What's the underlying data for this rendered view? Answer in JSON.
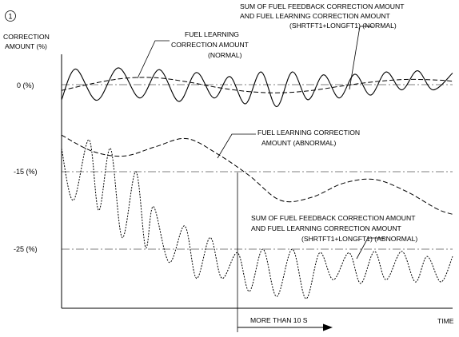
{
  "figure": {
    "marker": "1"
  },
  "chart_data": {
    "type": "line",
    "xlabel": "TIME",
    "ylabel_lines": [
      "CORRECTION",
      "AMOUNT (%)"
    ],
    "y_ticks": [
      {
        "label": "0 (%)",
        "value": 0
      },
      {
        "label": "-15 (%)",
        "value": -15
      },
      {
        "label": "-25 (%)",
        "value": -25
      }
    ],
    "annotations": {
      "sum_normal": [
        "SUM OF FUEL FEEDBACK CORRECTION AMOUNT",
        "AND FUEL LEARNING CORRECTION AMOUNT",
        "(SHRTFT1+LONGFT1) (NORMAL)"
      ],
      "learning_normal": [
        "FUEL LEARNING",
        "CORRECTION AMOUNT",
        "(NORMAL)"
      ],
      "learning_abnormal": [
        "FUEL LEARNING CORRECTION",
        "AMOUNT (ABNORMAL)"
      ],
      "sum_abnormal": [
        "SUM OF FUEL FEEDBACK CORRECTION AMOUNT",
        "AND FUEL LEARNING CORRECTION AMOUNT",
        "(SHRTFT1+LONGFT1) (ABNORMAL)"
      ],
      "duration": "MORE THAN 10 S"
    },
    "x_range": [
      0,
      100
    ],
    "y_range": [
      -33,
      8
    ],
    "series": [
      {
        "name": "FUEL LEARNING CORRECTION AMOUNT (NORMAL)",
        "style": "dashed",
        "x": [
          0,
          8,
          16,
          24,
          32,
          40,
          48,
          56,
          64,
          72,
          80,
          88,
          96,
          100
        ],
        "y": [
          -1.0,
          0.2,
          1.1,
          1.2,
          0.5,
          -0.5,
          -1.2,
          -1.4,
          -1.0,
          -0.2,
          0.5,
          0.9,
          0.8,
          0.6
        ]
      },
      {
        "name": "SUM OF FUEL FEEDBACK CORRECTION AMOUNT AND FUEL LEARNING CORRECTION AMOUNT (SHRTFT1+LONGFT1) (NORMAL)",
        "style": "solid",
        "x": [
          0,
          3.6,
          9,
          14.5,
          20,
          25,
          30,
          34.5,
          39,
          43,
          47,
          51,
          55,
          59,
          63,
          67,
          71,
          75,
          79,
          83,
          87,
          91,
          95,
          100
        ],
        "y": [
          -2.6,
          2.7,
          -2.7,
          2.9,
          -2.3,
          2.6,
          -2.9,
          2.1,
          -2.3,
          1.4,
          -3.3,
          2.2,
          -3.8,
          2.2,
          -2.6,
          1.7,
          -2.3,
          1.8,
          -1.8,
          2.2,
          -0.9,
          2.4,
          -0.9,
          2.0
        ]
      },
      {
        "name": "FUEL LEARNING CORRECTION AMOUNT (ABNORMAL)",
        "style": "dashed",
        "x": [
          0,
          8,
          16,
          24,
          32,
          40,
          48,
          56,
          64,
          72,
          80,
          88,
          96,
          100
        ],
        "y": [
          -8.7,
          -11.5,
          -12.3,
          -10.7,
          -9.3,
          -12.0,
          -15.5,
          -18.7,
          -18.3,
          -16.5,
          -16.0,
          -17.5,
          -19.8,
          -20.5
        ]
      },
      {
        "name": "SUM OF FUEL FEEDBACK CORRECTION AMOUNT AND FUEL LEARNING CORRECTION AMOUNT (SHRTFT1+LONGFT1) (ABNORMAL)",
        "style": "dotted",
        "x": [
          0,
          3,
          7,
          9.5,
          12.5,
          15.5,
          19,
          21.5,
          23.5,
          27.5,
          31.5,
          34.5,
          38,
          41,
          45,
          48,
          51.5,
          55,
          59,
          62.5,
          66,
          69.5,
          73.5,
          76.5,
          80,
          83,
          87,
          90.5,
          93.5,
          97,
          100
        ],
        "y": [
          -11,
          -18.7,
          -9.5,
          -20.0,
          -11.0,
          -23.5,
          -15.0,
          -24.8,
          -19.5,
          -26.8,
          -22.0,
          -29.0,
          -23.5,
          -29.0,
          -25.5,
          -30.8,
          -25.0,
          -31.5,
          -25.0,
          -31.8,
          -25.5,
          -29.2,
          -25.5,
          -29.7,
          -25.3,
          -29.2,
          -25.3,
          -29.5,
          -26.0,
          -29.5,
          -26.0
        ]
      }
    ],
    "reference_lines": [
      {
        "value": 0,
        "style": "dash-dot"
      },
      {
        "value": -15,
        "style": "dash-dot"
      },
      {
        "value": -25,
        "style": "dash-dot"
      }
    ]
  }
}
